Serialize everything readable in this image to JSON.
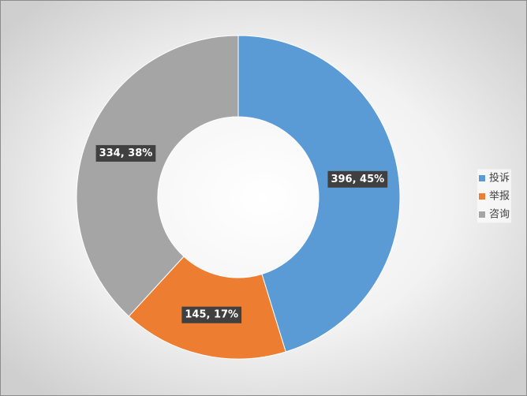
{
  "chart_data": {
    "type": "donut",
    "categories": [
      "投诉",
      "举报",
      "咨询"
    ],
    "values": [
      396,
      145,
      334
    ],
    "value_labels": [
      "396, 45%",
      "145, 17%",
      "334, 38%"
    ],
    "colors": [
      "#5b9bd5",
      "#ed7d31",
      "#a5a5a5"
    ],
    "legend": "right"
  }
}
